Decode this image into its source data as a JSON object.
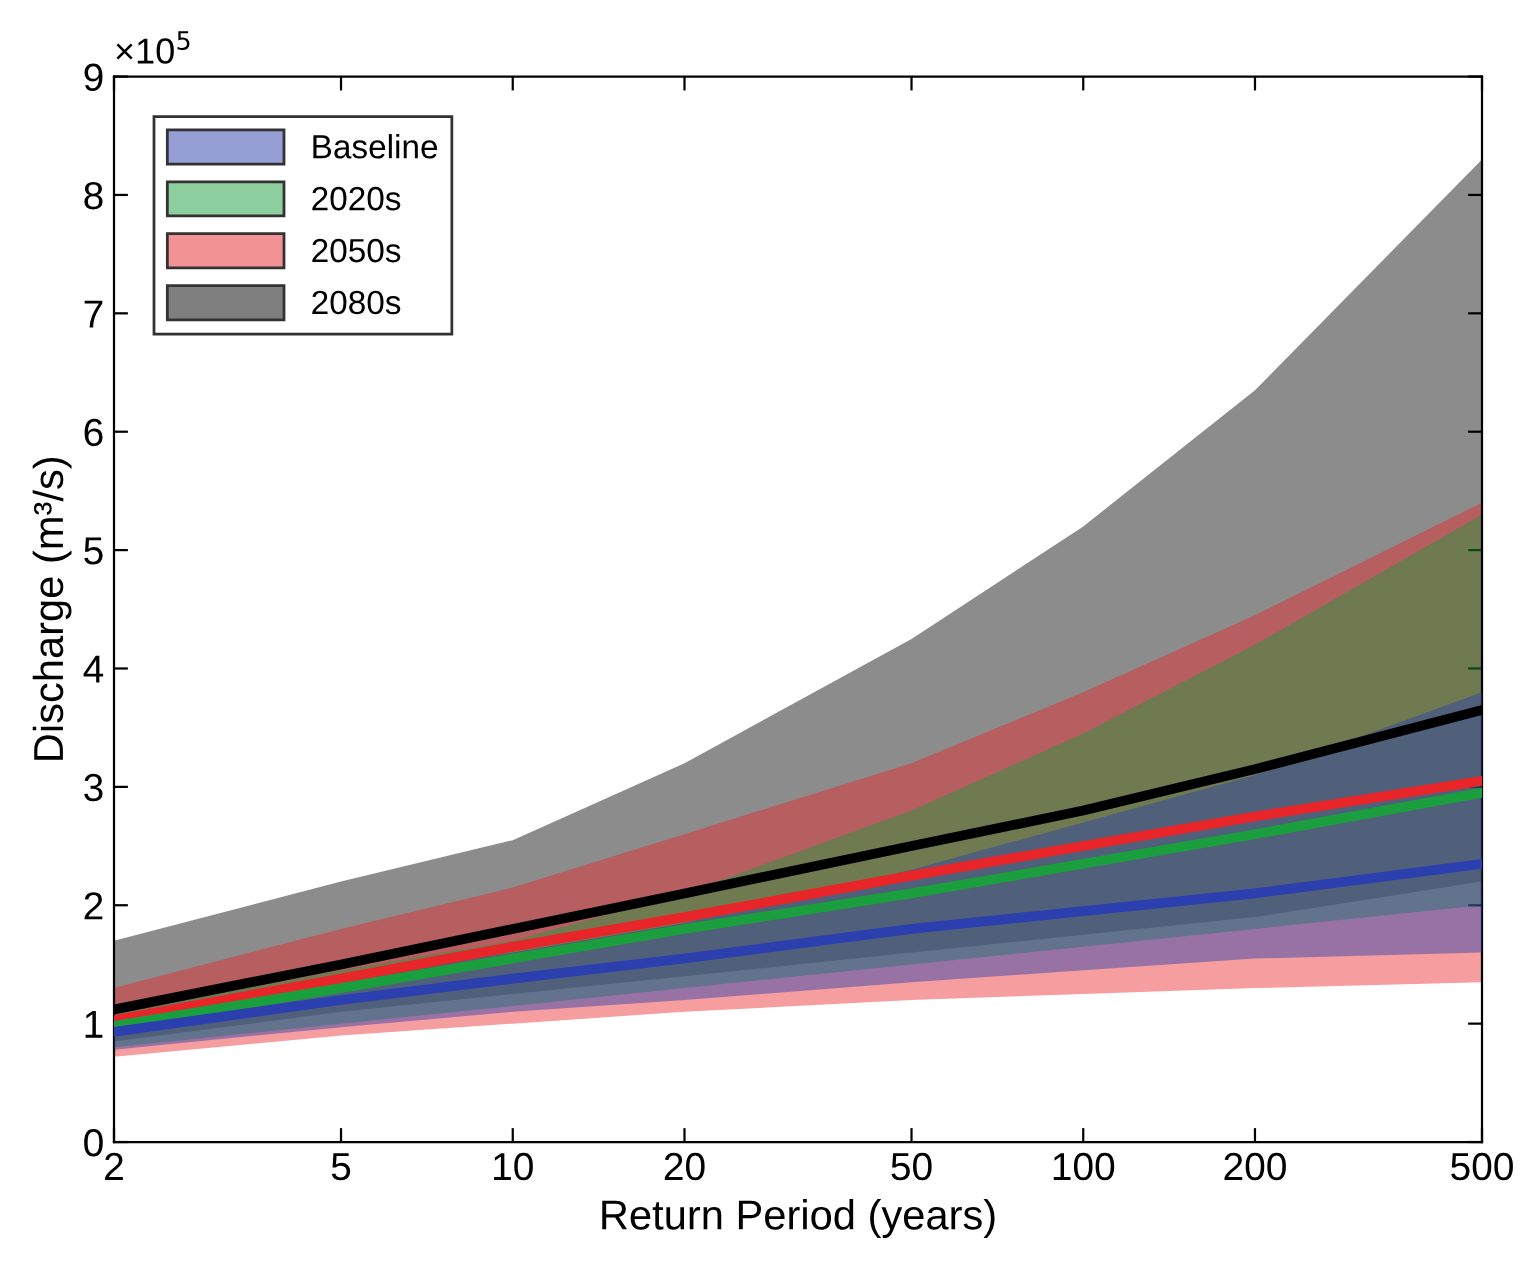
{
  "chart_data": {
    "type": "line",
    "xlabel": "Return Period (years)",
    "ylabel": "Discharge (m³/s)",
    "annotations": [
      "×10$^{5}$"
    ],
    "log": "x",
    "xlim": [
      2,
      500
    ],
    "xticks": [
      2,
      5,
      10,
      20,
      50,
      100,
      200,
      500
    ],
    "ylim": [
      0,
      9
    ],
    "yticks": [
      0,
      1,
      2,
      3,
      4,
      5,
      6,
      7,
      8,
      9
    ],
    "grid": false,
    "legend": "top left",
    "x": [
      2,
      5,
      10,
      20,
      50,
      100,
      200,
      500
    ],
    "series": [
      {
        "name": "2080s",
        "color": "#000000",
        "values": [
          1.12,
          1.5,
          1.8,
          2.1,
          2.5,
          2.8,
          3.15,
          3.65
        ],
        "lower": [
          0.85,
          1.1,
          1.25,
          1.4,
          1.6,
          1.75,
          1.9,
          2.2
        ],
        "upper": [
          1.7,
          2.2,
          2.55,
          3.2,
          4.25,
          5.2,
          6.35,
          8.3
        ]
      },
      {
        "name": "2050s",
        "color": "#e8262a",
        "values": [
          1.03,
          1.38,
          1.65,
          1.9,
          2.25,
          2.5,
          2.75,
          3.05
        ],
        "lower": [
          0.72,
          0.9,
          1.0,
          1.1,
          1.2,
          1.25,
          1.3,
          1.35
        ],
        "upper": [
          1.3,
          1.8,
          2.15,
          2.6,
          3.2,
          3.8,
          4.45,
          5.4
        ]
      },
      {
        "name": "2020s",
        "color": "#1b9e3e",
        "values": [
          0.98,
          1.3,
          1.55,
          1.8,
          2.1,
          2.35,
          2.6,
          2.95
        ],
        "lower": [
          0.8,
          1.0,
          1.15,
          1.3,
          1.5,
          1.65,
          1.8,
          2.0
        ],
        "upper": [
          1.1,
          1.45,
          1.7,
          2.1,
          2.8,
          3.45,
          4.2,
          5.3
        ]
      },
      {
        "name": "Baseline",
        "color": "#2b3fae",
        "values": [
          0.93,
          1.2,
          1.38,
          1.55,
          1.8,
          1.95,
          2.1,
          2.35
        ],
        "lower": [
          0.78,
          0.97,
          1.1,
          1.2,
          1.35,
          1.45,
          1.55,
          1.6
        ],
        "upper": [
          1.05,
          1.4,
          1.6,
          1.85,
          2.3,
          2.7,
          3.1,
          3.8
        ]
      }
    ]
  }
}
